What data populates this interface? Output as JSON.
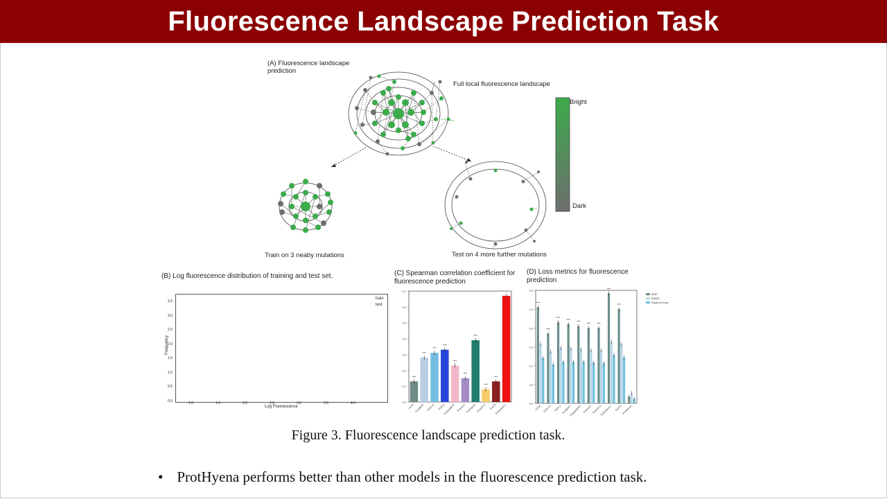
{
  "slide": {
    "title": "Fluorescence Landscape Prediction Task",
    "caption": "Figure 3. Fluorescence landscape prediction task.",
    "bullet_marker": "•",
    "bullet_text": "ProtHyena performs better than other models in the fluorescence prediction task."
  },
  "panel_a": {
    "title": "(A) Fluorescence landscape prediction",
    "full_label": "Full local fluorescence landscape",
    "train_label": "Train on 3 neaby mutations",
    "test_label": "Test on 4 more further mutations",
    "legend_bright": "Bright",
    "legend_dark": "Dark",
    "bright_color": "#3cab4b",
    "dark_color": "#6e6e6e"
  },
  "panel_b": {
    "title": "(B) Log fluorescence distribution of training and test set.",
    "legend": [
      "train",
      "test"
    ],
    "xlabel": "Log Fluorescence",
    "ylabel": "Frequency",
    "xticks": [
      "1.0",
      "1.5",
      "2.0",
      "2.5",
      "3.0",
      "3.5",
      "4.0"
    ],
    "yticks": [
      "3.5",
      "3.0",
      "2.5",
      "2.0",
      "1.5",
      "1.0",
      "0.5",
      "0.0"
    ]
  },
  "chart_data": [
    {
      "type": "bar",
      "title": "(C) Spearman correlation coefficient for fluorescence prediction",
      "ylim": [
        0,
        0.7
      ],
      "yticks": [
        "0.0",
        "0.1",
        "0.2",
        "0.3",
        "0.4",
        "0.5",
        "0.6",
        "0.7"
      ],
      "categories": [
        "LSTM",
        "ProtBERT",
        "ESM-1b",
        "ESM-2",
        "ProteinBERT",
        "ProGen2",
        "ProtHyena",
        "ProtGPT2",
        "ProtT5",
        "ProtHyena-L"
      ],
      "values": [
        0.13,
        0.28,
        0.31,
        0.33,
        0.23,
        0.15,
        0.39,
        0.08,
        0.13,
        0.67
      ],
      "colors": [
        "#6e8b87",
        "#b9cde3",
        "#75bde0",
        "#2846d8",
        "#f2b6cb",
        "#a58bc4",
        "#1e7d6e",
        "#f5cd6a",
        "#8b1f1f",
        "#ee1111"
      ],
      "significance": [
        "***",
        "***",
        "***",
        "***",
        "***",
        "***",
        "***",
        "***",
        "***",
        ""
      ]
    },
    {
      "type": "bar",
      "title": "(D) Loss metrics for fluorescence prediction",
      "ylim": [
        0,
        3.0
      ],
      "yticks": [
        "0.0",
        "0.5",
        "1.0",
        "1.5",
        "2.0",
        "2.5",
        "3.0"
      ],
      "legend": [
        "MSE",
        "RMSE",
        "Student-t loss"
      ],
      "categories": [
        "LSTM",
        "ESM-1b",
        "ESM-2",
        "ProtBERT",
        "ProteinBERT",
        "ProGen2",
        "ProtGPT2",
        "ProtHyena-L",
        "ProtT5",
        "ProtHyena"
      ],
      "series": [
        {
          "name": "MSE",
          "values": [
            2.55,
            1.85,
            2.15,
            2.1,
            2.05,
            2.0,
            2.0,
            2.92,
            2.5,
            0.18
          ]
        },
        {
          "name": "RMSE",
          "values": [
            1.58,
            1.38,
            1.47,
            1.45,
            1.44,
            1.41,
            1.41,
            1.64,
            1.57,
            0.27
          ]
        },
        {
          "name": "Student-t loss",
          "values": [
            1.2,
            1.03,
            1.1,
            1.1,
            1.1,
            1.08,
            1.06,
            1.28,
            1.22,
            0.12
          ]
        }
      ],
      "series_colors": [
        "#6a8c8a",
        "#b7d7e8",
        "#6fc0db"
      ],
      "significance": [
        "***",
        "***",
        "***",
        "***",
        "***",
        "***",
        "***",
        "***",
        "***",
        ""
      ]
    }
  ]
}
